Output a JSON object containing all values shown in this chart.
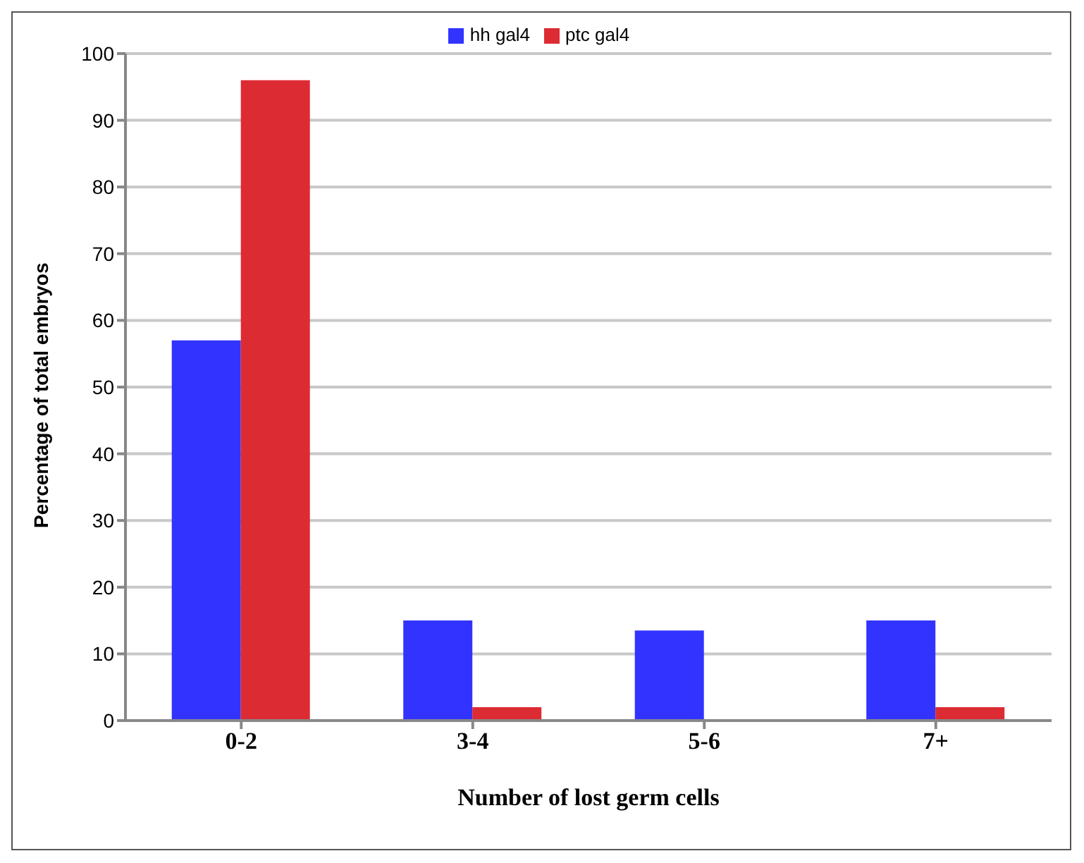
{
  "chart_data": {
    "type": "bar",
    "xlabel": "Number of lost germ cells",
    "ylabel": "Percentage of total embryos",
    "categories": [
      "0-2",
      "3-4",
      "5-6",
      "7+"
    ],
    "series": [
      {
        "name": "hh gal4",
        "color": "#3333ff",
        "values": [
          57,
          15,
          13.5,
          15
        ]
      },
      {
        "name": "ptc gal4",
        "color": "#dd2b33",
        "values": [
          96,
          2,
          0,
          2
        ]
      }
    ],
    "ylim": [
      0,
      100
    ],
    "yticks": [
      0,
      10,
      20,
      30,
      40,
      50,
      60,
      70,
      80,
      90,
      100
    ],
    "grid": "y",
    "legend": "top"
  }
}
